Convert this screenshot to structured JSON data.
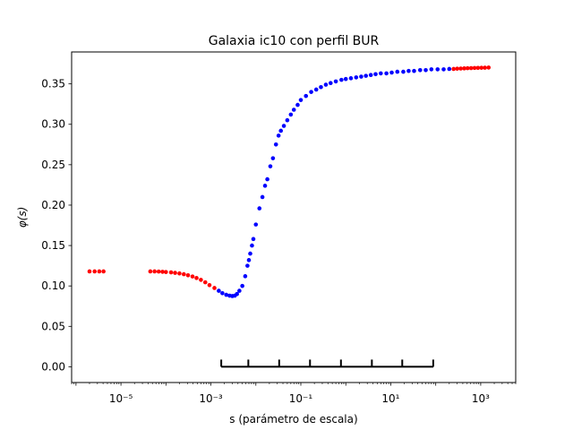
{
  "chart_data": {
    "type": "scatter",
    "title": "Galaxia ic10 con perfil BUR",
    "xlabel": "s (parámetro de escala)",
    "ylabel": "φ(s)",
    "xscale": "log",
    "xlim": [
      8e-07,
      6000
    ],
    "ylim": [
      -0.0195,
      0.3895
    ],
    "xticks": [
      {
        "value": 1e-05,
        "label": "10⁻⁵"
      },
      {
        "value": 0.001,
        "label": "10⁻³"
      },
      {
        "value": 0.1,
        "label": "10⁻¹"
      },
      {
        "value": 10,
        "label": "10¹"
      },
      {
        "value": 1000,
        "label": "10³"
      }
    ],
    "yticks": [
      {
        "value": 0.0,
        "label": "0.00"
      },
      {
        "value": 0.05,
        "label": "0.05"
      },
      {
        "value": 0.1,
        "label": "0.10"
      },
      {
        "value": 0.15,
        "label": "0.15"
      },
      {
        "value": 0.2,
        "label": "0.20"
      },
      {
        "value": 0.25,
        "label": "0.25"
      },
      {
        "value": 0.3,
        "label": "0.30"
      },
      {
        "value": 0.35,
        "label": "0.35"
      }
    ],
    "grid": false,
    "series": [
      {
        "color": "#ff0000",
        "points": [
          [
            2e-06,
            0.118
          ],
          [
            2.6e-06,
            0.118
          ],
          [
            3.3e-06,
            0.118
          ],
          [
            4.1e-06,
            0.118
          ],
          [
            4.5e-05,
            0.118
          ],
          [
            5.6e-05,
            0.118
          ],
          [
            6.9e-05,
            0.1178
          ],
          [
            8.4e-05,
            0.1175
          ],
          [
            0.0001,
            0.1172
          ],
          [
            0.00013,
            0.1168
          ],
          [
            0.00016,
            0.1162
          ],
          [
            0.0002,
            0.1155
          ],
          [
            0.00025,
            0.1145
          ],
          [
            0.00031,
            0.1132
          ],
          [
            0.00039,
            0.1117
          ],
          [
            0.00048,
            0.1098
          ],
          [
            0.0006,
            0.1075
          ],
          [
            0.00075,
            0.1045
          ],
          [
            0.00093,
            0.101
          ],
          [
            0.0012,
            0.0975
          ],
          [
            250,
            0.3685
          ],
          [
            300,
            0.3688
          ],
          [
            360,
            0.369
          ],
          [
            430,
            0.3692
          ],
          [
            510,
            0.3694
          ],
          [
            610,
            0.3695
          ],
          [
            730,
            0.3697
          ],
          [
            870,
            0.3698
          ],
          [
            1040,
            0.3699
          ],
          [
            1240,
            0.37
          ],
          [
            1500,
            0.3702
          ]
        ]
      },
      {
        "color": "#0000ff",
        "points": [
          [
            0.0015,
            0.094
          ],
          [
            0.0018,
            0.091
          ],
          [
            0.0022,
            0.089
          ],
          [
            0.0026,
            0.088
          ],
          [
            0.003,
            0.0875
          ],
          [
            0.0034,
            0.088
          ],
          [
            0.0038,
            0.09
          ],
          [
            0.0043,
            0.094
          ],
          [
            0.005,
            0.1
          ],
          [
            0.0058,
            0.112
          ],
          [
            0.0065,
            0.125
          ],
          [
            0.007,
            0.132
          ],
          [
            0.0075,
            0.14
          ],
          [
            0.0082,
            0.15
          ],
          [
            0.0088,
            0.158
          ],
          [
            0.01,
            0.176
          ],
          [
            0.012,
            0.196
          ],
          [
            0.014,
            0.21
          ],
          [
            0.016,
            0.224
          ],
          [
            0.018,
            0.232
          ],
          [
            0.021,
            0.248
          ],
          [
            0.024,
            0.258
          ],
          [
            0.028,
            0.275
          ],
          [
            0.032,
            0.286
          ],
          [
            0.036,
            0.292
          ],
          [
            0.042,
            0.298
          ],
          [
            0.05,
            0.305
          ],
          [
            0.06,
            0.312
          ],
          [
            0.07,
            0.318
          ],
          [
            0.085,
            0.324
          ],
          [
            0.1,
            0.33
          ],
          [
            0.13,
            0.335
          ],
          [
            0.17,
            0.34
          ],
          [
            0.22,
            0.343
          ],
          [
            0.28,
            0.346
          ],
          [
            0.36,
            0.349
          ],
          [
            0.46,
            0.351
          ],
          [
            0.6,
            0.353
          ],
          [
            0.8,
            0.355
          ],
          [
            1.0,
            0.356
          ],
          [
            1.3,
            0.357
          ],
          [
            1.7,
            0.358
          ],
          [
            2.2,
            0.359
          ],
          [
            2.8,
            0.36
          ],
          [
            3.6,
            0.361
          ],
          [
            4.6,
            0.362
          ],
          [
            6.0,
            0.363
          ],
          [
            8.0,
            0.363
          ],
          [
            10.5,
            0.364
          ],
          [
            14,
            0.365
          ],
          [
            19,
            0.365
          ],
          [
            25,
            0.366
          ],
          [
            33,
            0.366
          ],
          [
            45,
            0.367
          ],
          [
            60,
            0.367
          ],
          [
            80,
            0.368
          ],
          [
            110,
            0.368
          ],
          [
            150,
            0.368
          ],
          [
            200,
            0.3685
          ]
        ]
      },
      {
        "color": "#000000",
        "style": "errorbar",
        "points": [
          [
            0.0017,
            0.0
          ],
          [
            0.0068,
            0.0
          ],
          [
            0.033,
            0.0
          ],
          [
            0.16,
            0.0
          ],
          [
            0.78,
            0.0
          ],
          [
            3.8,
            0.0
          ],
          [
            18,
            0.0
          ],
          [
            88,
            0.0
          ]
        ]
      }
    ]
  }
}
